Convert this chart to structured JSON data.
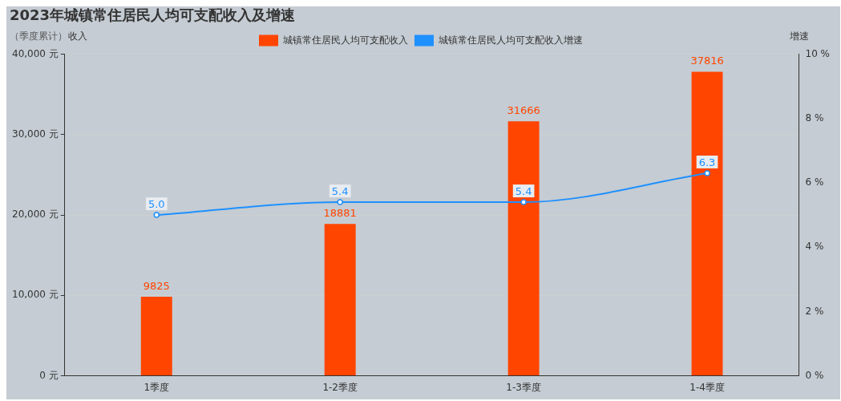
{
  "chart_data": {
    "type": "bar",
    "title": "2023年城镇常住居民人均可支配收入及增速",
    "ylabel": "收入",
    "y2label": "增速",
    "annotations": [
      "（季度累计）"
    ],
    "categories": [
      "1季度",
      "1-2季度",
      "1-3季度",
      "1-4季度"
    ],
    "series": [
      {
        "name": "城镇常住居民人均可支配收入",
        "color": "#ff4500",
        "values": [
          9825,
          18881,
          31666,
          37816
        ]
      },
      {
        "name": "城镇常住居民人均可支配收入增速",
        "type": "line",
        "axis": "y2",
        "color": "#1e90ff",
        "values": [
          5.0,
          5.4,
          5.4,
          6.3
        ],
        "value_labels": [
          "5.0",
          "5.4",
          "5.4",
          "6.3"
        ]
      }
    ],
    "ylim": [
      0,
      40000
    ],
    "yticks": [
      {
        "value": 0,
        "label": "0 元"
      },
      {
        "value": 10000,
        "label": "10,000 元"
      },
      {
        "value": 20000,
        "label": "20,000 元"
      },
      {
        "value": 30000,
        "label": "30,000 元"
      },
      {
        "value": 40000,
        "label": "40,000 元"
      }
    ],
    "y2lim": [
      0,
      10
    ],
    "y2ticks": [
      {
        "value": 0,
        "label": "0 %"
      },
      {
        "value": 2,
        "label": "2 %"
      },
      {
        "value": 4,
        "label": "4 %"
      },
      {
        "value": 6,
        "label": "6 %"
      },
      {
        "value": 8,
        "label": "8 %"
      },
      {
        "value": 10,
        "label": "10 %"
      }
    ],
    "data_labels": true,
    "grid": "y",
    "legend": "top",
    "marker": "circle",
    "line_style": "solid"
  }
}
